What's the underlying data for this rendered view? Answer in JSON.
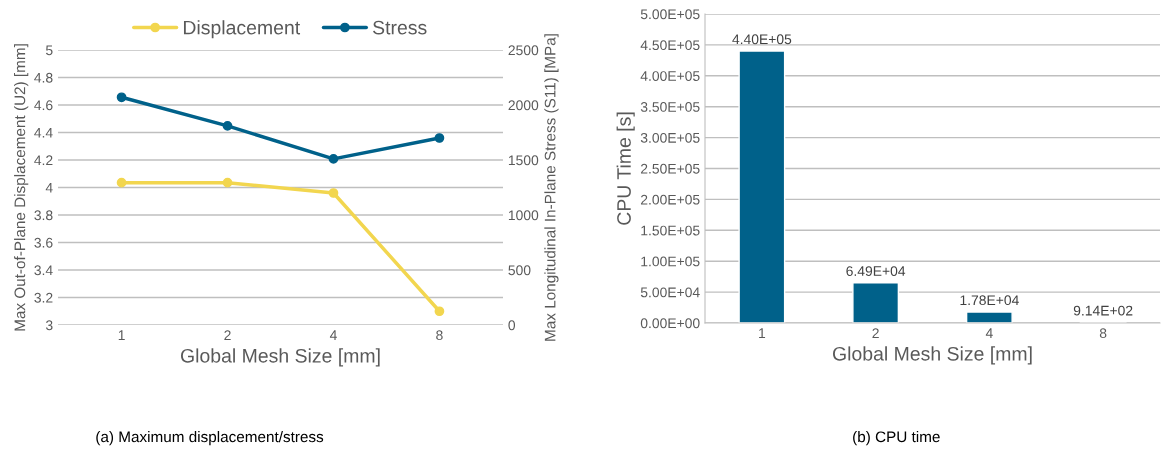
{
  "chart_data": [
    {
      "type": "line",
      "categories": [
        "1",
        "2",
        "4",
        "8"
      ],
      "xlabel": "Global Mesh Size [mm]",
      "ylabel": "Max Out-of-Plane Displacement (U2) [mm]",
      "y2label": "Max Longitudinal In-Plane Stress (S11) [MPa]",
      "series": [
        {
          "name": "Displacement",
          "color": "#f2d64f",
          "values": [
            4.035,
            4.035,
            3.96,
            3.1
          ]
        },
        {
          "name": "Stress",
          "color": "#00618a",
          "values": [
            2070,
            1810,
            1510,
            1700
          ],
          "axis": "y2"
        }
      ],
      "ylim": [
        3,
        5
      ],
      "yticks": [
        3,
        3.2,
        3.4,
        3.6,
        3.8,
        4,
        4.2,
        4.4,
        4.6,
        4.8,
        5
      ],
      "y2lim": [
        0,
        2500
      ],
      "y2ticks": [
        0,
        500,
        1000,
        1500,
        2000,
        2500
      ],
      "grid": "y",
      "legend": "top",
      "marker": "circle",
      "line_style": "solid",
      "annotations": [
        "(a) Maximum displacement/stress"
      ]
    },
    {
      "type": "bar",
      "categories": [
        "1",
        "2",
        "4",
        "8"
      ],
      "xlabel": "Global Mesh Size [mm]",
      "ylabel": "CPU Time [s]",
      "values": [
        440000,
        64900,
        17800,
        914
      ],
      "color": "#00618a",
      "value_labels": [
        "4.40E+05",
        "6.49E+04",
        "1.78E+04",
        "9.14E+02"
      ],
      "ylim": [
        0,
        500000
      ],
      "yticks": [
        {
          "value": 0,
          "label": "0.00E+00"
        },
        {
          "value": 50000,
          "label": "5.00E+04"
        },
        {
          "value": 100000,
          "label": "1.00E+05"
        },
        {
          "value": 150000,
          "label": "1.50E+05"
        },
        {
          "value": 200000,
          "label": "2.00E+05"
        },
        {
          "value": 250000,
          "label": "2.50E+05"
        },
        {
          "value": 300000,
          "label": "3.00E+05"
        },
        {
          "value": 350000,
          "label": "3.50E+05"
        },
        {
          "value": 400000,
          "label": "4.00E+05"
        },
        {
          "value": 450000,
          "label": "4.50E+05"
        },
        {
          "value": 500000,
          "label": "5.00E+05"
        }
      ],
      "grid": "y",
      "annotations": [
        "(b) CPU time"
      ]
    }
  ]
}
